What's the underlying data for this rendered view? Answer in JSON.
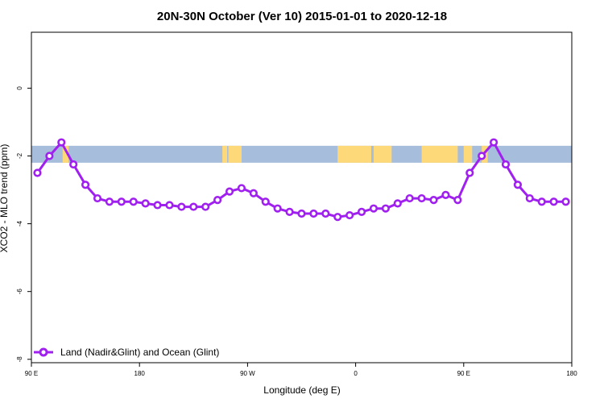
{
  "chart_data": {
    "type": "line",
    "title": "20N-30N October (Ver 10)   2015-01-01 to 2020-12-18",
    "xlabel": "Longitude (deg E)",
    "ylabel": "XCO2 - MLO trend (ppm)",
    "x_ticks": [
      {
        "value": 90,
        "label": "90 E"
      },
      {
        "value": 180,
        "label": "180"
      },
      {
        "value": 270,
        "label": "90 W"
      },
      {
        "value": 360,
        "label": "0"
      },
      {
        "value": 450,
        "label": "90 E"
      },
      {
        "value": 540,
        "label": "180"
      }
    ],
    "y_ticks": [
      {
        "value": 0,
        "label": "0"
      },
      {
        "value": -2,
        "label": "-2"
      },
      {
        "value": -4,
        "label": "-4"
      },
      {
        "value": -6,
        "label": "-6"
      },
      {
        "value": -8,
        "label": "-8"
      }
    ],
    "xlim": [
      90,
      540
    ],
    "ylim": [
      -8.1,
      1.65
    ],
    "background_band": {
      "description": "land/ocean map strip for 20N-30N",
      "ymin": -2.2,
      "ymax": -1.7,
      "ocean_color": "#A7BDDC",
      "land_color": "#FDD97A",
      "land_segments": [
        [
          116,
          121
        ],
        [
          249,
          253
        ],
        [
          254,
          265
        ],
        [
          345,
          373
        ],
        [
          375,
          390
        ],
        [
          415,
          445
        ],
        [
          450,
          457
        ],
        [
          465,
          470
        ]
      ]
    },
    "series": [
      {
        "name": "Land (Nadir&Glint) and Ocean (Glint)",
        "color": "#A020F0",
        "x": [
          95,
          105,
          115,
          125,
          135,
          145,
          155,
          165,
          175,
          185,
          195,
          205,
          215,
          225,
          235,
          245,
          255,
          265,
          275,
          285,
          295,
          305,
          315,
          325,
          335,
          345,
          355,
          365,
          375,
          385,
          395,
          405,
          415,
          425,
          435,
          445,
          455,
          465,
          475,
          485,
          495,
          505,
          515,
          525,
          535
        ],
        "y": [
          -2.5,
          -2.0,
          -1.6,
          -2.25,
          -2.85,
          -3.25,
          -3.35,
          -3.35,
          -3.35,
          -3.4,
          -3.45,
          -3.45,
          -3.5,
          -3.5,
          -3.5,
          -3.3,
          -3.05,
          -2.95,
          -3.1,
          -3.35,
          -3.55,
          -3.65,
          -3.7,
          -3.7,
          -3.7,
          -3.8,
          -3.75,
          -3.65,
          -3.55,
          -3.55,
          -3.4,
          -3.25,
          -3.25,
          -3.3,
          -3.15,
          -3.3,
          -2.5,
          -2.0,
          -1.6,
          -2.25,
          -2.85,
          -3.25,
          -3.35,
          -3.35,
          -3.35
        ]
      }
    ],
    "legend": {
      "position": "bottom-left",
      "label": "Land (Nadir&Glint) and Ocean (Glint)"
    },
    "grid": false
  }
}
